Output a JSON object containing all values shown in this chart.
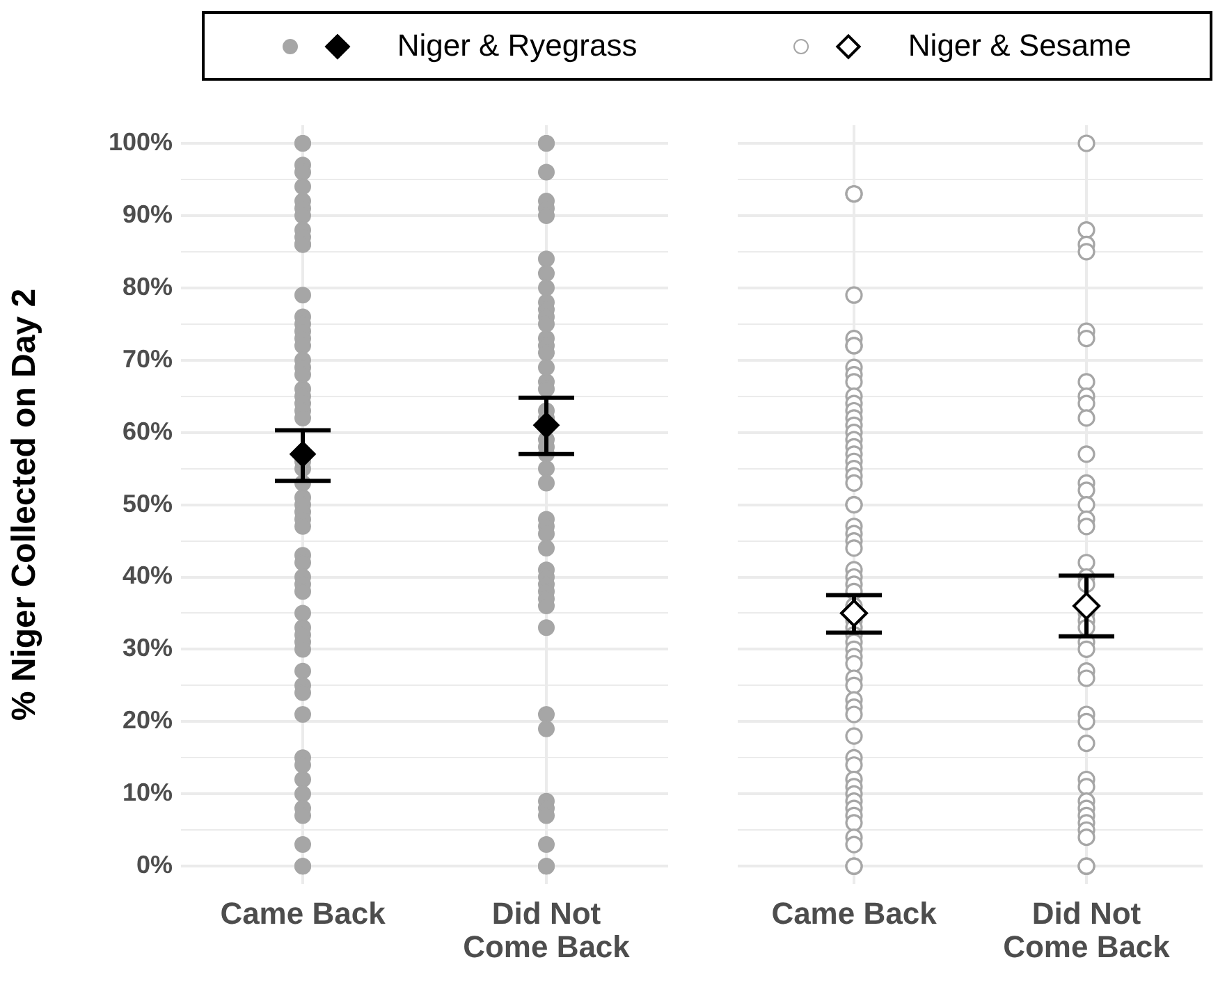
{
  "chart_data": [
    {
      "type": "scatter",
      "ylabel": "% Niger Collected on Day 2",
      "categories": [
        "Came Back",
        "Did Not Come Back"
      ],
      "ylim": [
        -2.5,
        102.5
      ],
      "yticks": [
        {
          "value": 0,
          "label": "0%"
        },
        {
          "value": 5,
          "label": null
        },
        {
          "value": 10,
          "label": "10%"
        },
        {
          "value": 15,
          "label": null
        },
        {
          "value": 20,
          "label": "20%"
        },
        {
          "value": 25,
          "label": null
        },
        {
          "value": 30,
          "label": "30%"
        },
        {
          "value": 35,
          "label": null
        },
        {
          "value": 40,
          "label": "40%"
        },
        {
          "value": 45,
          "label": null
        },
        {
          "value": 50,
          "label": "50%"
        },
        {
          "value": 55,
          "label": null
        },
        {
          "value": 60,
          "label": "60%"
        },
        {
          "value": 65,
          "label": null
        },
        {
          "value": 70,
          "label": "70%"
        },
        {
          "value": 75,
          "label": null
        },
        {
          "value": 80,
          "label": "80%"
        },
        {
          "value": 85,
          "label": null
        },
        {
          "value": 90,
          "label": "90%"
        },
        {
          "value": 95,
          "label": null
        },
        {
          "value": 100,
          "label": "100%"
        }
      ],
      "grid": true,
      "legend": "top",
      "series": [
        {
          "name": "Niger & Ryegrass",
          "color": "#a6a6a6",
          "marker": "circle",
          "x": [
            "Came Back",
            "Came Back",
            "Came Back",
            "Came Back",
            "Came Back",
            "Came Back",
            "Came Back",
            "Came Back",
            "Came Back",
            "Came Back",
            "Came Back",
            "Came Back",
            "Came Back",
            "Came Back",
            "Came Back",
            "Came Back",
            "Came Back",
            "Came Back",
            "Came Back",
            "Came Back",
            "Came Back",
            "Came Back",
            "Came Back",
            "Came Back",
            "Came Back",
            "Came Back",
            "Came Back",
            "Came Back",
            "Came Back",
            "Came Back",
            "Came Back",
            "Came Back",
            "Came Back",
            "Came Back",
            "Came Back",
            "Came Back",
            "Came Back",
            "Came Back",
            "Came Back",
            "Came Back",
            "Came Back",
            "Came Back",
            "Came Back",
            "Came Back",
            "Came Back",
            "Came Back",
            "Came Back",
            "Came Back",
            "Came Back",
            "Came Back",
            "Came Back",
            "Came Back",
            "Came Back",
            "Came Back",
            "Came Back",
            "Came Back",
            "Came Back",
            "Did Not Come Back",
            "Did Not Come Back",
            "Did Not Come Back",
            "Did Not Come Back",
            "Did Not Come Back",
            "Did Not Come Back",
            "Did Not Come Back",
            "Did Not Come Back",
            "Did Not Come Back",
            "Did Not Come Back",
            "Did Not Come Back",
            "Did Not Come Back",
            "Did Not Come Back",
            "Did Not Come Back",
            "Did Not Come Back",
            "Did Not Come Back",
            "Did Not Come Back",
            "Did Not Come Back",
            "Did Not Come Back",
            "Did Not Come Back",
            "Did Not Come Back",
            "Did Not Come Back",
            "Did Not Come Back",
            "Did Not Come Back",
            "Did Not Come Back",
            "Did Not Come Back",
            "Did Not Come Back",
            "Did Not Come Back",
            "Did Not Come Back",
            "Did Not Come Back",
            "Did Not Come Back",
            "Did Not Come Back",
            "Did Not Come Back",
            "Did Not Come Back",
            "Did Not Come Back",
            "Did Not Come Back",
            "Did Not Come Back",
            "Did Not Come Back",
            "Did Not Come Back",
            "Did Not Come Back",
            "Did Not Come Back",
            "Did Not Come Back",
            "Did Not Come Back",
            "Did Not Come Back",
            "Did Not Come Back"
          ],
          "values": [
            100,
            97,
            96,
            94,
            92,
            91,
            90,
            88,
            87,
            86,
            79,
            76,
            75,
            74,
            73,
            72,
            70,
            69,
            68,
            66,
            65,
            64,
            63,
            62,
            56,
            55,
            53,
            51,
            50,
            49,
            48,
            47,
            43,
            42,
            40,
            39,
            38,
            35,
            33,
            32,
            31,
            30,
            27,
            25,
            24,
            21,
            15,
            14,
            12,
            10,
            8,
            7,
            3,
            0,
            100,
            0,
            86,
            100,
            96,
            92,
            91,
            90,
            84,
            82,
            80,
            78,
            77,
            76,
            75,
            73,
            72,
            71,
            69,
            67,
            66,
            63,
            62,
            59,
            58,
            57,
            55,
            53,
            48,
            47,
            46,
            44,
            41,
            40,
            39,
            38,
            37,
            36,
            33,
            21,
            19,
            9,
            8,
            7,
            3,
            0,
            100,
            0
          ]
        },
        {
          "color": "#000000",
          "marker": "diamond",
          "x": [
            "Came Back",
            "Did Not Come Back"
          ],
          "values": [
            57,
            61
          ],
          "errors": [
            [
              53.3,
              60.3
            ],
            [
              57,
              64.8
            ]
          ]
        }
      ]
    },
    {
      "type": "scatter",
      "categories": [
        "Came Back",
        "Did Not Come Back"
      ],
      "ylim": [
        -2.5,
        102.5
      ],
      "tick_labels": "x",
      "yticks": [
        0,
        {
          "value": 5,
          "label": null
        },
        10,
        {
          "value": 15,
          "label": null
        },
        20,
        {
          "value": 25,
          "label": null
        },
        30,
        {
          "value": 35,
          "label": null
        },
        40,
        {
          "value": 45,
          "label": null
        },
        50,
        {
          "value": 55,
          "label": null
        },
        60,
        {
          "value": 65,
          "label": null
        },
        70,
        {
          "value": 75,
          "label": null
        },
        80,
        {
          "value": 85,
          "label": null
        },
        90,
        {
          "value": 95,
          "label": null
        },
        100
      ],
      "grid": true,
      "legend": "top",
      "series": [
        {
          "name": "Niger & Sesame",
          "color": "#a6a6a6",
          "marker": "circle_open",
          "x": [
            "Came Back",
            "Came Back",
            "Came Back",
            "Came Back",
            "Came Back",
            "Came Back",
            "Came Back",
            "Came Back",
            "Came Back",
            "Came Back",
            "Came Back",
            "Came Back",
            "Came Back",
            "Came Back",
            "Came Back",
            "Came Back",
            "Came Back",
            "Came Back",
            "Came Back",
            "Came Back",
            "Came Back",
            "Came Back",
            "Came Back",
            "Came Back",
            "Came Back",
            "Came Back",
            "Came Back",
            "Came Back",
            "Came Back",
            "Came Back",
            "Came Back",
            "Came Back",
            "Came Back",
            "Came Back",
            "Came Back",
            "Came Back",
            "Came Back",
            "Came Back",
            "Came Back",
            "Came Back",
            "Came Back",
            "Came Back",
            "Came Back",
            "Came Back",
            "Came Back",
            "Came Back",
            "Came Back",
            "Came Back",
            "Came Back",
            "Came Back",
            "Came Back",
            "Came Back",
            "Came Back",
            "Came Back",
            "Came Back",
            "Came Back",
            "Came Back",
            "Came Back",
            "Came Back",
            "Did Not Come Back",
            "Did Not Come Back",
            "Did Not Come Back",
            "Did Not Come Back",
            "Did Not Come Back",
            "Did Not Come Back",
            "Did Not Come Back",
            "Did Not Come Back",
            "Did Not Come Back",
            "Did Not Come Back",
            "Did Not Come Back",
            "Did Not Come Back",
            "Did Not Come Back",
            "Did Not Come Back",
            "Did Not Come Back",
            "Did Not Come Back",
            "Did Not Come Back",
            "Did Not Come Back",
            "Did Not Come Back",
            "Did Not Come Back",
            "Did Not Come Back",
            "Did Not Come Back",
            "Did Not Come Back",
            "Did Not Come Back",
            "Did Not Come Back",
            "Did Not Come Back",
            "Did Not Come Back",
            "Did Not Come Back",
            "Did Not Come Back",
            "Did Not Come Back",
            "Did Not Come Back",
            "Did Not Come Back",
            "Did Not Come Back",
            "Did Not Come Back",
            "Did Not Come Back",
            "Did Not Come Back",
            "Did Not Come Back",
            "Did Not Come Back",
            "Did Not Come Back"
          ],
          "values": [
            93,
            79,
            73,
            72,
            69,
            68,
            67,
            65,
            64,
            63,
            62,
            61,
            60,
            59,
            58,
            57,
            56,
            55,
            54,
            53,
            50,
            47,
            46,
            45,
            44,
            41,
            40,
            39,
            38,
            36,
            34,
            33,
            32,
            31,
            30,
            29,
            28,
            26,
            25,
            23,
            22,
            21,
            18,
            15,
            14,
            12,
            11,
            10,
            9,
            8,
            7,
            6,
            4,
            3,
            0,
            93,
            72,
            50,
            0,
            100,
            88,
            86,
            85,
            74,
            73,
            67,
            65,
            64,
            62,
            57,
            53,
            52,
            50,
            48,
            47,
            42,
            40,
            39,
            35,
            34,
            33,
            31,
            30,
            27,
            26,
            21,
            20,
            17,
            12,
            11,
            9,
            8,
            7,
            6,
            5,
            4,
            0,
            0
          ]
        },
        {
          "color": "#000000",
          "marker": "diamond_open",
          "x": [
            "Came Back",
            "Did Not Come Back"
          ],
          "values": [
            35,
            36
          ],
          "errors": [
            [
              32.3,
              37.5
            ],
            [
              31.8,
              40.2
            ]
          ]
        }
      ]
    }
  ]
}
